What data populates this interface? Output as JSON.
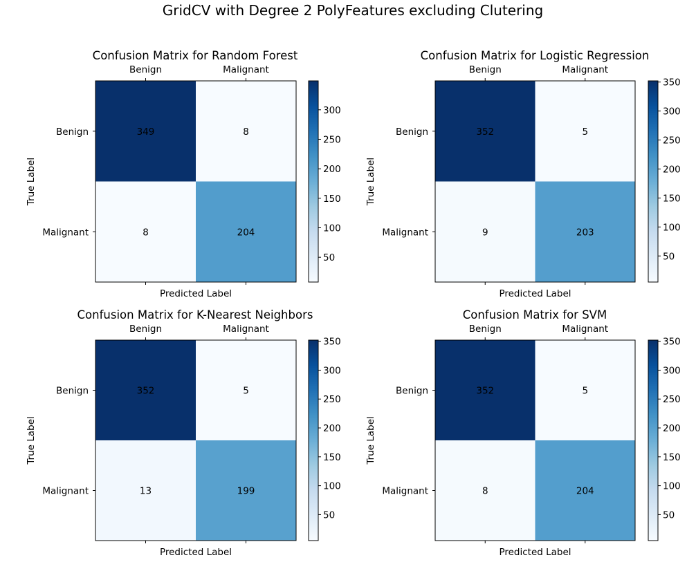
{
  "figure": {
    "suptitle": "GridCV with Degree 2 PolyFeatures excluding Clutering"
  },
  "chart_data": [
    {
      "type": "heatmap",
      "title": "Confusion Matrix for Random Forest",
      "xlabel": "Predicted Label",
      "ylabel": "True Label",
      "x_tick_labels": [
        "Benign",
        "Malignant"
      ],
      "y_tick_labels": [
        "Benign",
        "Malignant"
      ],
      "matrix": [
        [
          349,
          8
        ],
        [
          8,
          204
        ]
      ],
      "colormap": "Blues",
      "colorbar": {
        "vmin": 8,
        "vmax": 349,
        "ticks": [
          50,
          100,
          150,
          200,
          250,
          300
        ]
      }
    },
    {
      "type": "heatmap",
      "title": "Confusion Matrix for Logistic Regression",
      "xlabel": "Predicted Label",
      "ylabel": "True Label",
      "x_tick_labels": [
        "Benign",
        "Malignant"
      ],
      "y_tick_labels": [
        "Benign",
        "Malignant"
      ],
      "matrix": [
        [
          352,
          5
        ],
        [
          9,
          203
        ]
      ],
      "colormap": "Blues",
      "colorbar": {
        "vmin": 5,
        "vmax": 352,
        "ticks": [
          50,
          100,
          150,
          200,
          250,
          300,
          350
        ]
      }
    },
    {
      "type": "heatmap",
      "title": "Confusion Matrix for K-Nearest Neighbors",
      "xlabel": "Predicted Label",
      "ylabel": "True Label",
      "x_tick_labels": [
        "Benign",
        "Malignant"
      ],
      "y_tick_labels": [
        "Benign",
        "Malignant"
      ],
      "matrix": [
        [
          352,
          5
        ],
        [
          13,
          199
        ]
      ],
      "colormap": "Blues",
      "colorbar": {
        "vmin": 5,
        "vmax": 352,
        "ticks": [
          50,
          100,
          150,
          200,
          250,
          300,
          350
        ]
      }
    },
    {
      "type": "heatmap",
      "title": "Confusion Matrix for SVM",
      "xlabel": "Predicted Label",
      "ylabel": "True Label",
      "x_tick_labels": [
        "Benign",
        "Malignant"
      ],
      "y_tick_labels": [
        "Benign",
        "Malignant"
      ],
      "matrix": [
        [
          352,
          5
        ],
        [
          8,
          204
        ]
      ],
      "colormap": "Blues",
      "colorbar": {
        "vmin": 5,
        "vmax": 352,
        "ticks": [
          50,
          100,
          150,
          200,
          250,
          300,
          350
        ]
      }
    }
  ]
}
